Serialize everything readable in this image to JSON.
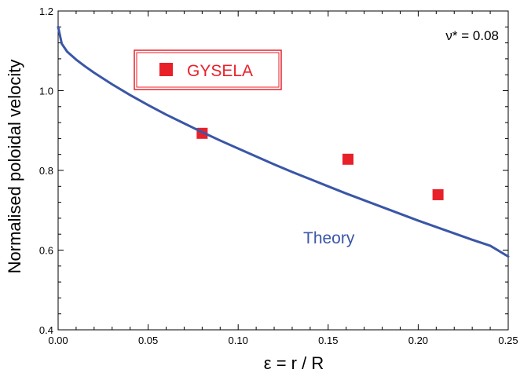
{
  "chart_data": {
    "type": "scatter",
    "xlabel": "ε =  r / R",
    "ylabel": "Normalised poloidal velocity",
    "xlim": [
      0,
      0.25
    ],
    "ylim": [
      0.4,
      1.2
    ],
    "x_ticks": [
      0.0,
      0.05,
      0.1,
      0.15,
      0.2,
      0.25
    ],
    "y_ticks": [
      0.4,
      0.6,
      0.8,
      1.0,
      1.2
    ],
    "x_tick_labels": [
      "0.00",
      "0.05",
      "0.10",
      "0.15",
      "0.20",
      "0.25"
    ],
    "y_tick_labels": [
      "0.4",
      "0.6",
      "0.8",
      "1.0",
      "1.2"
    ],
    "grid": false,
    "series": [
      {
        "name": "GYSELA",
        "kind": "scatter",
        "marker": "square",
        "color": "#e8202a",
        "x": [
          0.08,
          0.161,
          0.211
        ],
        "y": [
          0.893,
          0.828,
          0.739
        ]
      },
      {
        "name": "Theory",
        "kind": "line",
        "color": "#3a56a6",
        "x": [
          0.0,
          0.002,
          0.005,
          0.01,
          0.015,
          0.02,
          0.03,
          0.04,
          0.05,
          0.06,
          0.07,
          0.08,
          0.09,
          0.1,
          0.11,
          0.12,
          0.13,
          0.14,
          0.15,
          0.16,
          0.17,
          0.18,
          0.19,
          0.2,
          0.21,
          0.22,
          0.23,
          0.24,
          0.25
        ],
        "y": [
          1.16,
          1.118,
          1.098,
          1.078,
          1.061,
          1.045,
          1.016,
          0.989,
          0.964,
          0.94,
          0.918,
          0.896,
          0.875,
          0.855,
          0.835,
          0.815,
          0.796,
          0.778,
          0.76,
          0.742,
          0.725,
          0.708,
          0.691,
          0.674,
          0.658,
          0.642,
          0.626,
          0.611,
          0.584
        ]
      }
    ],
    "legend": {
      "label": "GYSELA",
      "placement": "top-left",
      "box_color": "#e8202a"
    },
    "annotations": {
      "theory_label": "Theory",
      "nu_label": "ν* = 0.08"
    }
  }
}
